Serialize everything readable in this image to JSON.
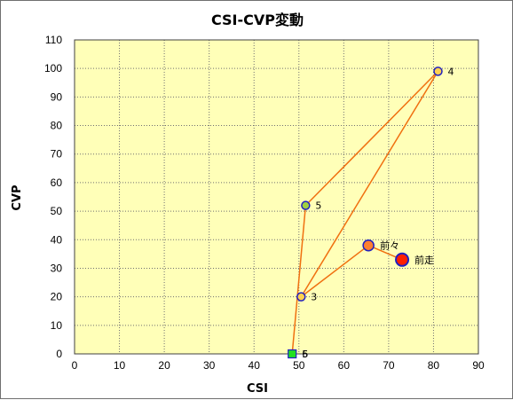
{
  "chart_data": {
    "type": "scatter",
    "title": "CSI-CVP変動",
    "xlabel": "CSI",
    "ylabel": "CVP",
    "xlim": [
      0,
      90
    ],
    "ylim": [
      0,
      110
    ],
    "x_ticks": [
      0,
      10,
      20,
      30,
      40,
      50,
      60,
      70,
      80,
      90
    ],
    "y_ticks": [
      0,
      10,
      20,
      30,
      40,
      50,
      60,
      70,
      80,
      90,
      100,
      110
    ],
    "grid": true,
    "line_color": "#f07010",
    "plot_background": "#ffffb8",
    "points": [
      {
        "label": "前走",
        "x": 73,
        "y": 33,
        "fill": "#ff2000",
        "stroke": "#2020c0",
        "shape": "circle-large"
      },
      {
        "label": "前々",
        "x": 65.5,
        "y": 38,
        "fill": "#ff8030",
        "stroke": "#2020c0",
        "shape": "circle"
      },
      {
        "label": "3",
        "x": 50.5,
        "y": 20,
        "fill": "#ffd050",
        "stroke": "#2020c0",
        "shape": "circle-small"
      },
      {
        "label": "4",
        "x": 81,
        "y": 99,
        "fill": "#ffd050",
        "stroke": "#2020c0",
        "shape": "circle-small"
      },
      {
        "label": "5",
        "x": 51.5,
        "y": 52,
        "fill": "#a0d040",
        "stroke": "#2020c0",
        "shape": "circle-small"
      },
      {
        "label": "6",
        "x": 48.5,
        "y": 0,
        "fill": "#20e020",
        "stroke": "#2020c0",
        "shape": "square"
      }
    ],
    "path_order": [
      "前走",
      "前々",
      "3",
      "4",
      "5",
      "6"
    ],
    "label_overlay": [
      "5"
    ]
  }
}
